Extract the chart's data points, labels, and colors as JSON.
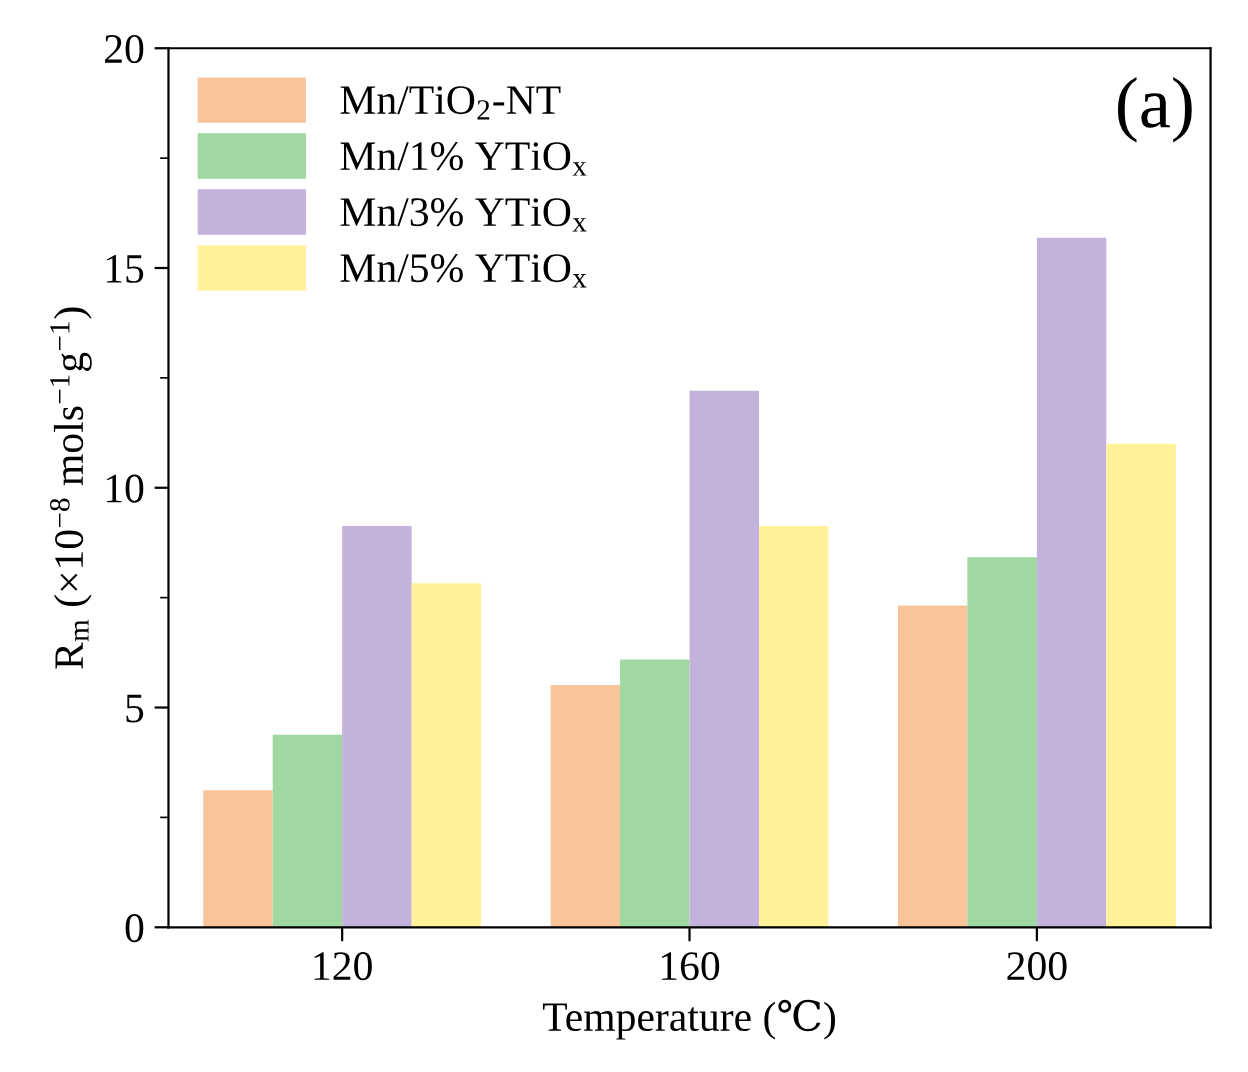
{
  "chart_data": {
    "type": "bar",
    "xlabel": "Temperature (℃)",
    "ylabel": "R$_{m}$ (×10$^{−8}$ mols$^{−1}$g$^{−1}$)",
    "categories": [
      "120",
      "160",
      "200"
    ],
    "series": [
      {
        "name": "Mn/TiO$_{2}$-NT",
        "color": "#f9c49a",
        "values": [
          3.12,
          5.51,
          7.32
        ]
      },
      {
        "name": "Mn/1% YTiO$_{x}$",
        "color": "#9fd8a0",
        "values": [
          4.38,
          6.09,
          8.42
        ]
      },
      {
        "name": "Mn/3% YTiO$_{x}$",
        "color": "#c3b3dc",
        "values": [
          9.13,
          12.21,
          15.69
        ]
      },
      {
        "name": "Mn/5% YTiO$_{x}$",
        "color": "#fff29a",
        "values": [
          7.83,
          9.13,
          11.0
        ]
      }
    ],
    "ylim": [
      0,
      20
    ],
    "yticks": [
      0,
      5,
      10,
      15,
      20
    ],
    "grid": false,
    "legend": "top left",
    "annotations": [
      "(a)"
    ]
  }
}
